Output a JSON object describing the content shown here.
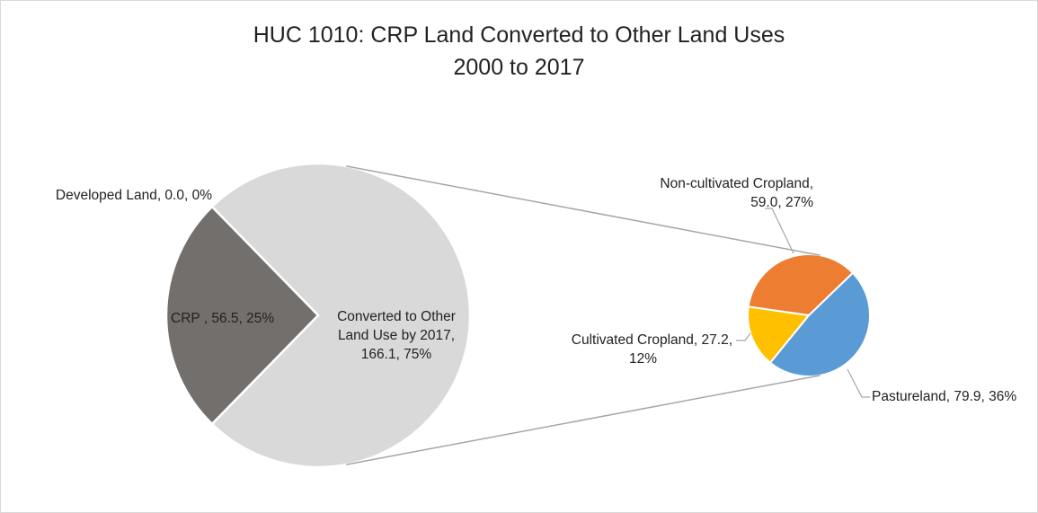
{
  "chart_data": {
    "type": "pie",
    "title_line1": "HUC 1010: CRP Land Converted to Other Land Uses",
    "title_line2": "2000 to 2017",
    "primary_pie": {
      "slices": [
        {
          "name": "Developed Land",
          "value": 0.0,
          "percent": "0%",
          "color": "#5a5a5a",
          "label_line1": "Developed Land, 0.0, 0%"
        },
        {
          "name": "CRP ",
          "value": 56.5,
          "percent": "25%",
          "color": "#736f6c",
          "label_line1": "CRP , 56.5, 25%"
        },
        {
          "name": "Converted to Other Land Use by 2017",
          "value": 166.1,
          "percent": "75%",
          "color": "#d9d9d9",
          "label_line1": "Converted to Other",
          "label_line2": "Land Use by 2017,",
          "label_line3": "166.1, 75%"
        }
      ]
    },
    "secondary_pie": {
      "slices": [
        {
          "name": "Non-cultivated Cropland",
          "value": 59.0,
          "percent": "27%",
          "color": "#ed7d31",
          "label_line1": "Non-cultivated Cropland,",
          "label_line2": "59.0, 27%"
        },
        {
          "name": "Pastureland",
          "value": 79.9,
          "percent": "36%",
          "color": "#5b9bd5",
          "label_line1": "Pastureland, 79.9, 36%"
        },
        {
          "name": "Cultivated Cropland",
          "value": 27.2,
          "percent": "12%",
          "color": "#ffc000",
          "label_line1": "Cultivated Cropland, 27.2,",
          "label_line2": "12%"
        }
      ]
    },
    "connector_color": "#a6a6a6",
    "leader_color": "#a6a6a6"
  }
}
